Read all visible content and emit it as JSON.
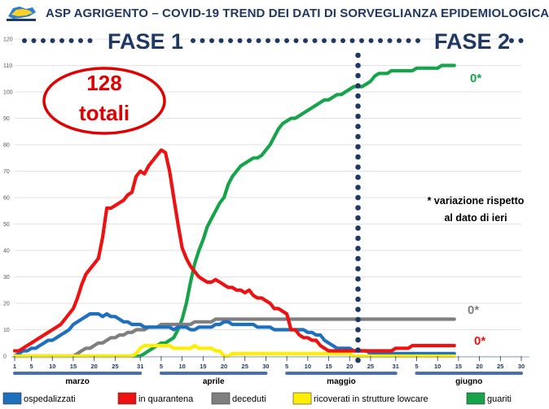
{
  "header": {
    "title": "ASP AGRIGENTO – COVID-19    TREND DEI DATI DI SORVEGLIANZA EPIDEMIOLOGICA"
  },
  "phases": {
    "phase1": "FASE 1",
    "phase2": "FASE 2"
  },
  "total_box": {
    "value": "128",
    "label": "totali"
  },
  "note": {
    "line1": "* variazione rispetto",
    "line2": "al dato di ieri"
  },
  "end_labels": {
    "guariti": "0*",
    "deceduti": "0*",
    "in_quarantena": "0*"
  },
  "chart_data": {
    "type": "line",
    "x": [
      1,
      2,
      3,
      4,
      5,
      6,
      7,
      8,
      9,
      10,
      11,
      12,
      13,
      14,
      15,
      16,
      17,
      18,
      19,
      20,
      21,
      22,
      23,
      24,
      25,
      26,
      27,
      28,
      29,
      30,
      31,
      32,
      33,
      34,
      35,
      36,
      37,
      38,
      39,
      40,
      41,
      42,
      43,
      44,
      45,
      46,
      47,
      48,
      49,
      50,
      51,
      52,
      53,
      54,
      55,
      56,
      57,
      58,
      59,
      60,
      61,
      62,
      63,
      64,
      65,
      66,
      67,
      68,
      69,
      70,
      71,
      72,
      73,
      74,
      75,
      76,
      77,
      78,
      79,
      80,
      81,
      82,
      83,
      84,
      85,
      86,
      87,
      88,
      89,
      90,
      91,
      92,
      93,
      94,
      95,
      96,
      97,
      98,
      99,
      100,
      101,
      102,
      103,
      104,
      105,
      106
    ],
    "ylim": [
      0,
      120
    ],
    "yticks": [
      0,
      10,
      20,
      30,
      40,
      50,
      60,
      70,
      80,
      90,
      100,
      110,
      120
    ],
    "x_tick_labels": [
      "1",
      "5",
      "10",
      "15",
      "20",
      "25",
      "31",
      "5",
      "10",
      "15",
      "20",
      "25",
      "30",
      "5",
      "10",
      "15",
      "20",
      "25",
      "31",
      "5",
      "10",
      "15",
      "20",
      "25",
      "30"
    ],
    "x_tick_positions": [
      1,
      5,
      10,
      15,
      20,
      25,
      31,
      36,
      41,
      46,
      51,
      56,
      61,
      66,
      71,
      76,
      81,
      86,
      92,
      97,
      102,
      107,
      112,
      117,
      122
    ],
    "months": [
      "marzo",
      "aprile",
      "maggio",
      "giugno"
    ],
    "phase2_start": 83,
    "series": [
      {
        "name": "ospedalizzati",
        "color": "#1f6fbf",
        "values": [
          0,
          1,
          2,
          2,
          3,
          3,
          4,
          5,
          6,
          6,
          7,
          8,
          9,
          10,
          12,
          13,
          14,
          15,
          16,
          16,
          16,
          15,
          16,
          15,
          15,
          14,
          13,
          13,
          12,
          12,
          12,
          11,
          11,
          11,
          11,
          11,
          11,
          11,
          10,
          11,
          11,
          11,
          10,
          10,
          11,
          11,
          11,
          11,
          12,
          12,
          13,
          13,
          12,
          12,
          12,
          12,
          12,
          12,
          11,
          11,
          11,
          11,
          10,
          10,
          10,
          10,
          10,
          10,
          10,
          10,
          9,
          9,
          8,
          8,
          6,
          5,
          4,
          3,
          3,
          3,
          3,
          2,
          2,
          2,
          2,
          1,
          1,
          1,
          1,
          1,
          1,
          1,
          1,
          1,
          1,
          1,
          1,
          1,
          1,
          1,
          1,
          1,
          1,
          1,
          1,
          1
        ]
      },
      {
        "name": "in quarantena",
        "color": "#ee1111",
        "values": [
          2,
          2,
          3,
          4,
          5,
          6,
          7,
          8,
          9,
          10,
          11,
          12,
          14,
          16,
          18,
          22,
          27,
          31,
          33,
          35,
          37,
          45,
          56,
          56,
          57,
          58,
          59,
          61,
          62,
          68,
          70,
          69,
          72,
          74,
          76,
          78,
          77,
          70,
          60,
          50,
          41,
          37,
          34,
          32,
          30,
          29,
          28,
          28,
          29,
          28,
          27,
          26,
          26,
          25,
          25,
          24,
          25,
          23,
          22,
          22,
          21,
          20,
          18,
          18,
          17,
          16,
          10,
          10,
          8,
          7,
          7,
          6,
          6,
          4,
          3,
          2,
          2,
          2,
          2,
          2,
          2,
          2,
          2,
          2,
          2,
          2,
          2,
          2,
          2,
          2,
          2,
          3,
          3,
          3,
          3,
          4,
          4,
          4,
          4,
          4,
          4,
          4,
          4,
          4,
          4,
          4
        ]
      },
      {
        "name": "deceduti",
        "color": "#7f7f7f",
        "values": [
          0,
          0,
          0,
          0,
          0,
          0,
          0,
          0,
          0,
          0,
          0,
          0,
          0,
          0,
          0,
          1,
          2,
          3,
          3,
          4,
          5,
          5,
          6,
          7,
          7,
          8,
          8,
          9,
          9,
          10,
          10,
          10,
          11,
          11,
          11,
          12,
          12,
          12,
          12,
          12,
          12,
          12,
          12,
          13,
          13,
          13,
          13,
          13,
          14,
          14,
          14,
          14,
          14,
          14,
          14,
          14,
          14,
          14,
          14,
          14,
          14,
          14,
          14,
          14,
          14,
          14,
          14,
          14,
          14,
          14,
          14,
          14,
          14,
          14,
          14,
          14,
          14,
          14,
          14,
          14,
          14,
          14,
          14,
          14,
          14,
          14,
          14,
          14,
          14,
          14,
          14,
          14,
          14,
          14,
          14,
          14,
          14,
          14,
          14,
          14,
          14,
          14,
          14,
          14,
          14,
          14
        ]
      },
      {
        "name": "ricoverati in strutture lowcare",
        "color": "#ffee00",
        "values": [
          0,
          0,
          0,
          0,
          0,
          0,
          0,
          0,
          0,
          0,
          0,
          0,
          0,
          0,
          0,
          0,
          0,
          0,
          0,
          0,
          0,
          0,
          0,
          0,
          0,
          0,
          0,
          0,
          0,
          1,
          3,
          4,
          4,
          4,
          4,
          4,
          4,
          4,
          3,
          3,
          3,
          3,
          3,
          4,
          3,
          3,
          3,
          3,
          2,
          2,
          0,
          0,
          1,
          1,
          1,
          1,
          1,
          1,
          1,
          1,
          1,
          1,
          1,
          1,
          1,
          1,
          1,
          1,
          1,
          1,
          1,
          1,
          1,
          1,
          1,
          1,
          1,
          1,
          1,
          1,
          1,
          0,
          0,
          0,
          0,
          0,
          0,
          0,
          0,
          0,
          0,
          0,
          0,
          0,
          0,
          0,
          0,
          0,
          0,
          0,
          0,
          0,
          0,
          0,
          0,
          0
        ]
      },
      {
        "name": "guariti",
        "color": "#16a34a",
        "values": [
          0,
          0,
          0,
          0,
          0,
          0,
          0,
          0,
          0,
          0,
          0,
          0,
          0,
          0,
          0,
          0,
          0,
          0,
          0,
          0,
          0,
          0,
          0,
          0,
          0,
          0,
          0,
          0,
          0,
          0,
          0,
          1,
          2,
          3,
          4,
          5,
          5,
          6,
          7,
          10,
          14,
          20,
          28,
          35,
          40,
          44,
          49,
          52,
          55,
          58,
          60,
          65,
          68,
          70,
          72,
          73,
          74,
          75,
          75,
          76,
          78,
          80,
          83,
          86,
          88,
          89,
          90,
          90,
          91,
          92,
          93,
          94,
          95,
          96,
          97,
          97,
          98,
          99,
          99,
          100,
          101,
          102,
          102,
          102,
          103,
          104,
          106,
          107,
          107,
          107,
          108,
          108,
          108,
          108,
          108,
          108,
          109,
          109,
          109,
          109,
          109,
          109,
          110,
          110,
          110,
          110
        ]
      }
    ],
    "legend_position": "bottom"
  },
  "legend": [
    "ospedalizzati",
    "in quarantena",
    "deceduti",
    "ricoverati in strutture lowcare",
    "guariti"
  ]
}
